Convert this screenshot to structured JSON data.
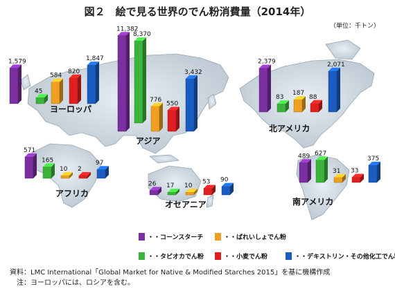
{
  "title": "図２　絵で見る世界のでん粉消費量（2014年）",
  "unit": "（単位：千トン）",
  "series": [
    {
      "name": "・・コーンスターチ",
      "color": "#7b2fa0"
    },
    {
      "name": "・・ばれいしょでん粉",
      "color": "#f0a020"
    },
    {
      "name": "・・タピオカでん粉",
      "color": "#3cb43c"
    },
    {
      "name": "・・小麦でん粉",
      "color": "#e02020"
    },
    {
      "name": "・・デキストリン・その他化工でん粉",
      "color": "#1a5cc0"
    }
  ],
  "chart_data": {
    "type": "bar",
    "title": "図２　絵で見る世界のでん粉消費量（2014年）",
    "unit": "千トン",
    "categories": [
      "ヨーロッパ",
      "アジア",
      "北アメリカ",
      "アフリカ",
      "オセアニア",
      "南アメリカ"
    ],
    "series": [
      {
        "name": "コーンスターチ",
        "values": [
          1579,
          11382,
          2379,
          571,
          26,
          489
        ]
      },
      {
        "name": "タピオカでん粉",
        "values": [
          45,
          8370,
          83,
          165,
          17,
          627
        ]
      },
      {
        "name": "ばれいしょでん粉",
        "values": [
          584,
          776,
          187,
          10,
          10,
          31
        ]
      },
      {
        "name": "小麦でん粉",
        "values": [
          820,
          550,
          88,
          2,
          53,
          33
        ]
      },
      {
        "name": "デキストリン・その他化工でん粉",
        "values": [
          1847,
          3432,
          2071,
          97,
          90,
          375
        ]
      }
    ]
  },
  "notes": [
    "資料：LMC International「Global Market for Native & Modified Starches 2015」を基に機構作成",
    "　注：ヨーロッパには、ロシアを含む。"
  ]
}
